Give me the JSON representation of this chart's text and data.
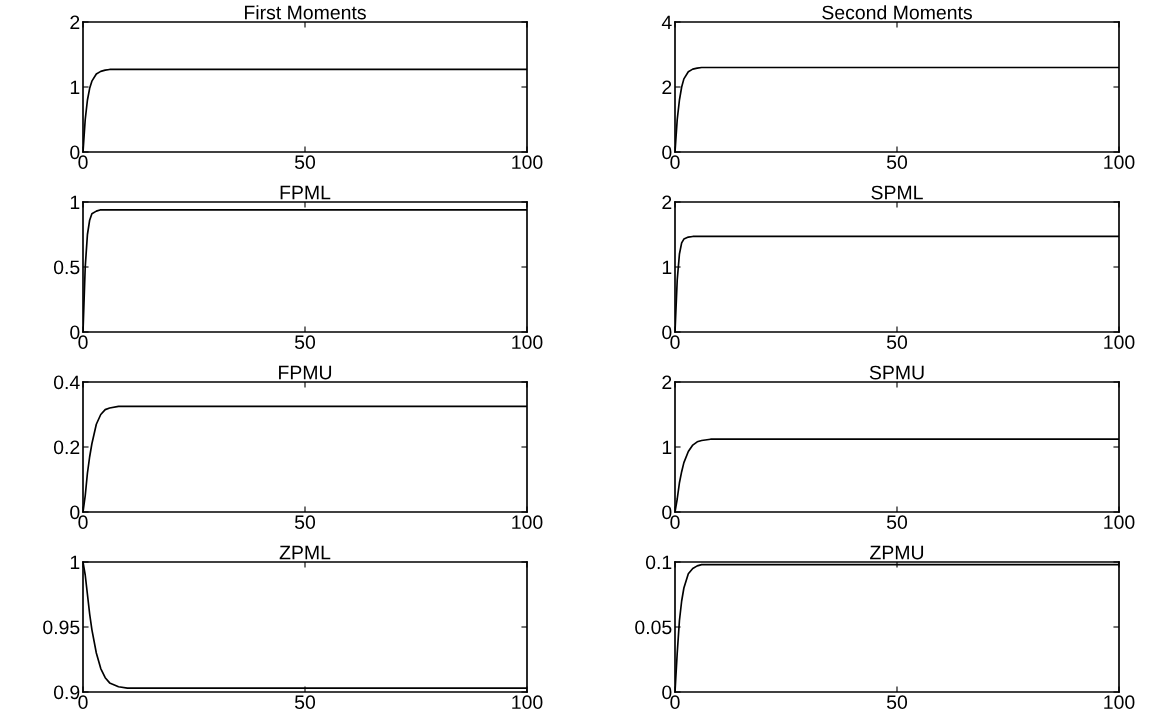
{
  "chart_data": [
    {
      "type": "line",
      "title": "First Moments",
      "x": [
        0,
        0.5,
        1,
        1.5,
        2,
        3,
        4,
        5,
        6,
        8,
        10,
        100
      ],
      "series": [
        {
          "color": "#000000",
          "values": [
            0,
            0.5,
            0.8,
            0.98,
            1.09,
            1.2,
            1.24,
            1.26,
            1.27,
            1.27,
            1.27,
            1.27
          ]
        }
      ],
      "xlim": [
        0,
        100
      ],
      "xticks": [
        0,
        50,
        100
      ],
      "ylim": [
        0,
        2
      ],
      "yticks": [
        0,
        1,
        2
      ],
      "grid": false,
      "line_style": "solid"
    },
    {
      "type": "line",
      "title": "Second Moments",
      "x": [
        0,
        0.5,
        1,
        1.5,
        2,
        3,
        4,
        5,
        6,
        8,
        10,
        100
      ],
      "series": [
        {
          "color": "#000000",
          "values": [
            0,
            1.0,
            1.6,
            2.0,
            2.25,
            2.47,
            2.55,
            2.58,
            2.6,
            2.6,
            2.6,
            2.6
          ]
        }
      ],
      "xlim": [
        0,
        100
      ],
      "xticks": [
        0,
        50,
        100
      ],
      "ylim": [
        0,
        4
      ],
      "yticks": [
        0,
        2,
        4
      ],
      "grid": false,
      "line_style": "solid"
    },
    {
      "type": "line",
      "title": "FPML",
      "x": [
        0,
        0.5,
        1,
        1.5,
        2,
        3,
        4,
        5,
        6,
        8,
        10,
        100
      ],
      "series": [
        {
          "color": "#000000",
          "values": [
            0,
            0.5,
            0.75,
            0.86,
            0.91,
            0.93,
            0.94,
            0.94,
            0.94,
            0.94,
            0.94,
            0.94
          ]
        }
      ],
      "xlim": [
        0,
        100
      ],
      "xticks": [
        0,
        50,
        100
      ],
      "ylim": [
        0,
        1
      ],
      "yticks": [
        0,
        0.5,
        1
      ],
      "grid": false,
      "line_style": "solid"
    },
    {
      "type": "line",
      "title": "SPML",
      "x": [
        0,
        0.5,
        1,
        1.5,
        2,
        3,
        4,
        5,
        6,
        8,
        10,
        100
      ],
      "series": [
        {
          "color": "#000000",
          "values": [
            0,
            0.8,
            1.2,
            1.37,
            1.43,
            1.46,
            1.47,
            1.47,
            1.47,
            1.47,
            1.47,
            1.47
          ]
        }
      ],
      "xlim": [
        0,
        100
      ],
      "xticks": [
        0,
        50,
        100
      ],
      "ylim": [
        0,
        2
      ],
      "yticks": [
        0,
        1,
        2
      ],
      "grid": false,
      "line_style": "solid"
    },
    {
      "type": "line",
      "title": "FPMU",
      "x": [
        0,
        0.5,
        1,
        1.5,
        2,
        3,
        4,
        5,
        6,
        8,
        10,
        100
      ],
      "series": [
        {
          "color": "#000000",
          "values": [
            0,
            0.05,
            0.12,
            0.17,
            0.21,
            0.27,
            0.3,
            0.315,
            0.32,
            0.325,
            0.325,
            0.325
          ]
        }
      ],
      "xlim": [
        0,
        100
      ],
      "xticks": [
        0,
        50,
        100
      ],
      "ylim": [
        0,
        0.4
      ],
      "yticks": [
        0,
        0.2,
        0.4
      ],
      "grid": false,
      "line_style": "solid"
    },
    {
      "type": "line",
      "title": "SPMU",
      "x": [
        0,
        0.5,
        1,
        1.5,
        2,
        3,
        4,
        5,
        6,
        8,
        10,
        100
      ],
      "series": [
        {
          "color": "#000000",
          "values": [
            0,
            0.2,
            0.45,
            0.62,
            0.76,
            0.93,
            1.03,
            1.08,
            1.1,
            1.12,
            1.12,
            1.12
          ]
        }
      ],
      "xlim": [
        0,
        100
      ],
      "xticks": [
        0,
        50,
        100
      ],
      "ylim": [
        0,
        2
      ],
      "yticks": [
        0,
        1,
        2
      ],
      "grid": false,
      "line_style": "solid"
    },
    {
      "type": "line",
      "title": "ZPML",
      "x": [
        0,
        0.5,
        1,
        1.5,
        2,
        3,
        4,
        5,
        6,
        8,
        10,
        100
      ],
      "series": [
        {
          "color": "#000000",
          "values": [
            1,
            0.99,
            0.975,
            0.96,
            0.948,
            0.93,
            0.918,
            0.911,
            0.907,
            0.904,
            0.903,
            0.903
          ]
        }
      ],
      "xlim": [
        0,
        100
      ],
      "xticks": [
        0,
        50,
        100
      ],
      "ylim": [
        0.9,
        1
      ],
      "yticks": [
        0.9,
        0.95,
        1
      ],
      "grid": false,
      "line_style": "solid"
    },
    {
      "type": "line",
      "title": "ZPMU",
      "x": [
        0,
        0.5,
        1,
        1.5,
        2,
        3,
        4,
        5,
        6,
        8,
        10,
        100
      ],
      "series": [
        {
          "color": "#000000",
          "values": [
            0,
            0.03,
            0.055,
            0.07,
            0.08,
            0.091,
            0.095,
            0.097,
            0.098,
            0.098,
            0.098,
            0.098
          ]
        }
      ],
      "xlim": [
        0,
        100
      ],
      "xticks": [
        0,
        50,
        100
      ],
      "ylim": [
        0,
        0.1
      ],
      "yticks": [
        0,
        0.05,
        0.1
      ],
      "grid": false,
      "line_style": "solid"
    }
  ]
}
